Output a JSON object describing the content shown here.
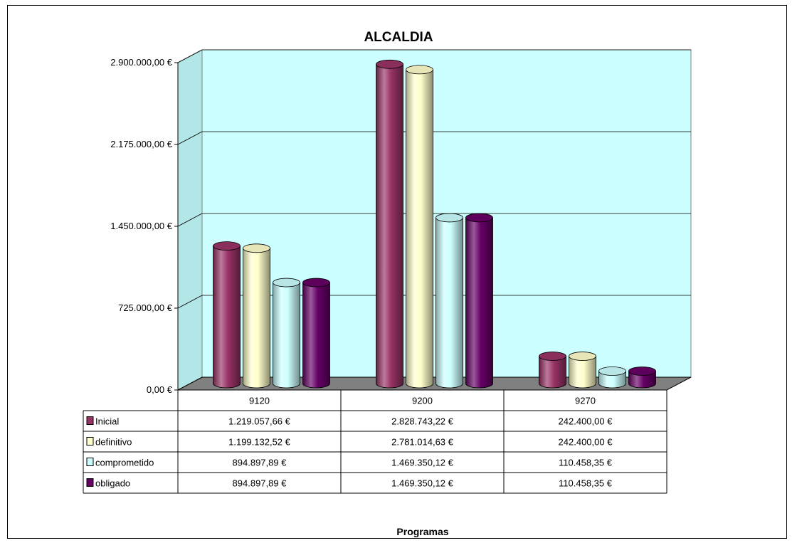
{
  "chart_data": {
    "type": "bar",
    "title": "ALCALDIA",
    "xlabel": "Programas",
    "ylabel": "",
    "ylim": [
      0,
      2900000
    ],
    "yticks": [
      0,
      725000,
      1450000,
      2175000,
      2900000
    ],
    "ytick_labels": [
      "0,00 €",
      "725.000,00 €",
      "1.450.000,00 €",
      "2.175.000,00 €",
      "2.900.000,00 €"
    ],
    "categories": [
      "9120",
      "9200",
      "9270"
    ],
    "grid": true,
    "legend": "data-table-below",
    "series": [
      {
        "name": "Inicial",
        "color": "#993366",
        "values": [
          1219057.66,
          2828743.22,
          242400.0
        ],
        "labels": [
          "1.219.057,66 €",
          "2.828.743,22 €",
          "242.400,00 €"
        ]
      },
      {
        "name": "definitivo",
        "color": "#FFFFCC",
        "values": [
          1199132.52,
          2781014.63,
          242400.0
        ],
        "labels": [
          "1.199.132,52 €",
          "2.781.014,63 €",
          "242.400,00 €"
        ]
      },
      {
        "name": "comprometido",
        "color": "#CCFFFF",
        "values": [
          894897.89,
          1469350.12,
          110458.35
        ],
        "labels": [
          "894.897,89 €",
          "1.469.350,12 €",
          "110.458,35 €"
        ]
      },
      {
        "name": "obligado",
        "color": "#660066",
        "values": [
          894897.89,
          1469350.12,
          110458.35
        ],
        "labels": [
          "894.897,89 €",
          "1.469.350,12 €",
          "110.458,35 €"
        ]
      }
    ],
    "colors": {
      "wall": "#CCFFFF",
      "floor": "#808080"
    }
  }
}
